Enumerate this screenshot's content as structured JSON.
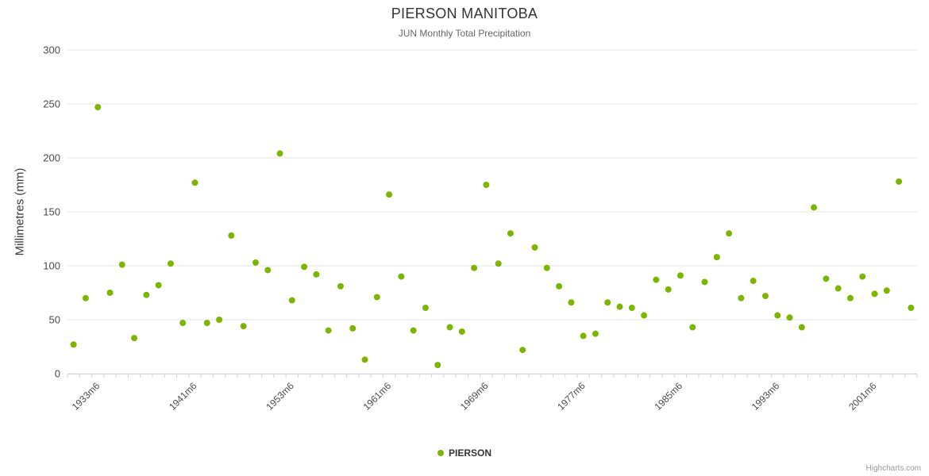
{
  "title": "PIERSON MANITOBA",
  "subtitle": "JUN Monthly Total Precipitation",
  "ylabel": "Millimetres (mm)",
  "legend": {
    "label": "PIERSON"
  },
  "credits": "Highcharts.com",
  "colors": {
    "point": "#7cb500",
    "grid": "#e6e6e6",
    "axis": "#ccd6eb",
    "tick_text": "#4a4a4a"
  },
  "chart_data": {
    "type": "scatter",
    "title": "PIERSON MANITOBA",
    "subtitle": "JUN Monthly Total Precipitation",
    "xlabel": "",
    "ylabel": "Millimetres (mm)",
    "ylim": [
      0,
      300
    ],
    "yticks": [
      0,
      50,
      100,
      150,
      200,
      250,
      300
    ],
    "grid": true,
    "legend_position": "bottom",
    "x_tick_labels": [
      {
        "index": 2,
        "label": "1933m6"
      },
      {
        "index": 10,
        "label": "1941m6"
      },
      {
        "index": 18,
        "label": "1953m6"
      },
      {
        "index": 26,
        "label": "1961m6"
      },
      {
        "index": 34,
        "label": "1969m6"
      },
      {
        "index": 42,
        "label": "1977m6"
      },
      {
        "index": 50,
        "label": "1985m6"
      },
      {
        "index": 58,
        "label": "1993m6"
      },
      {
        "index": 66,
        "label": "2001m6"
      }
    ],
    "series": [
      {
        "name": "PIERSON",
        "values": [
          27,
          70,
          247,
          75,
          101,
          33,
          73,
          82,
          102,
          47,
          177,
          47,
          50,
          128,
          44,
          103,
          96,
          204,
          68,
          99,
          92,
          40,
          81,
          42,
          13,
          71,
          166,
          90,
          40,
          61,
          8,
          43,
          39,
          98,
          175,
          102,
          130,
          22,
          117,
          98,
          81,
          66,
          35,
          37,
          66,
          62,
          61,
          54,
          87,
          78,
          91,
          43,
          85,
          108,
          130,
          70,
          86,
          72,
          54,
          52,
          43,
          154,
          88,
          79,
          70,
          90,
          74,
          77,
          178,
          61
        ]
      }
    ]
  }
}
